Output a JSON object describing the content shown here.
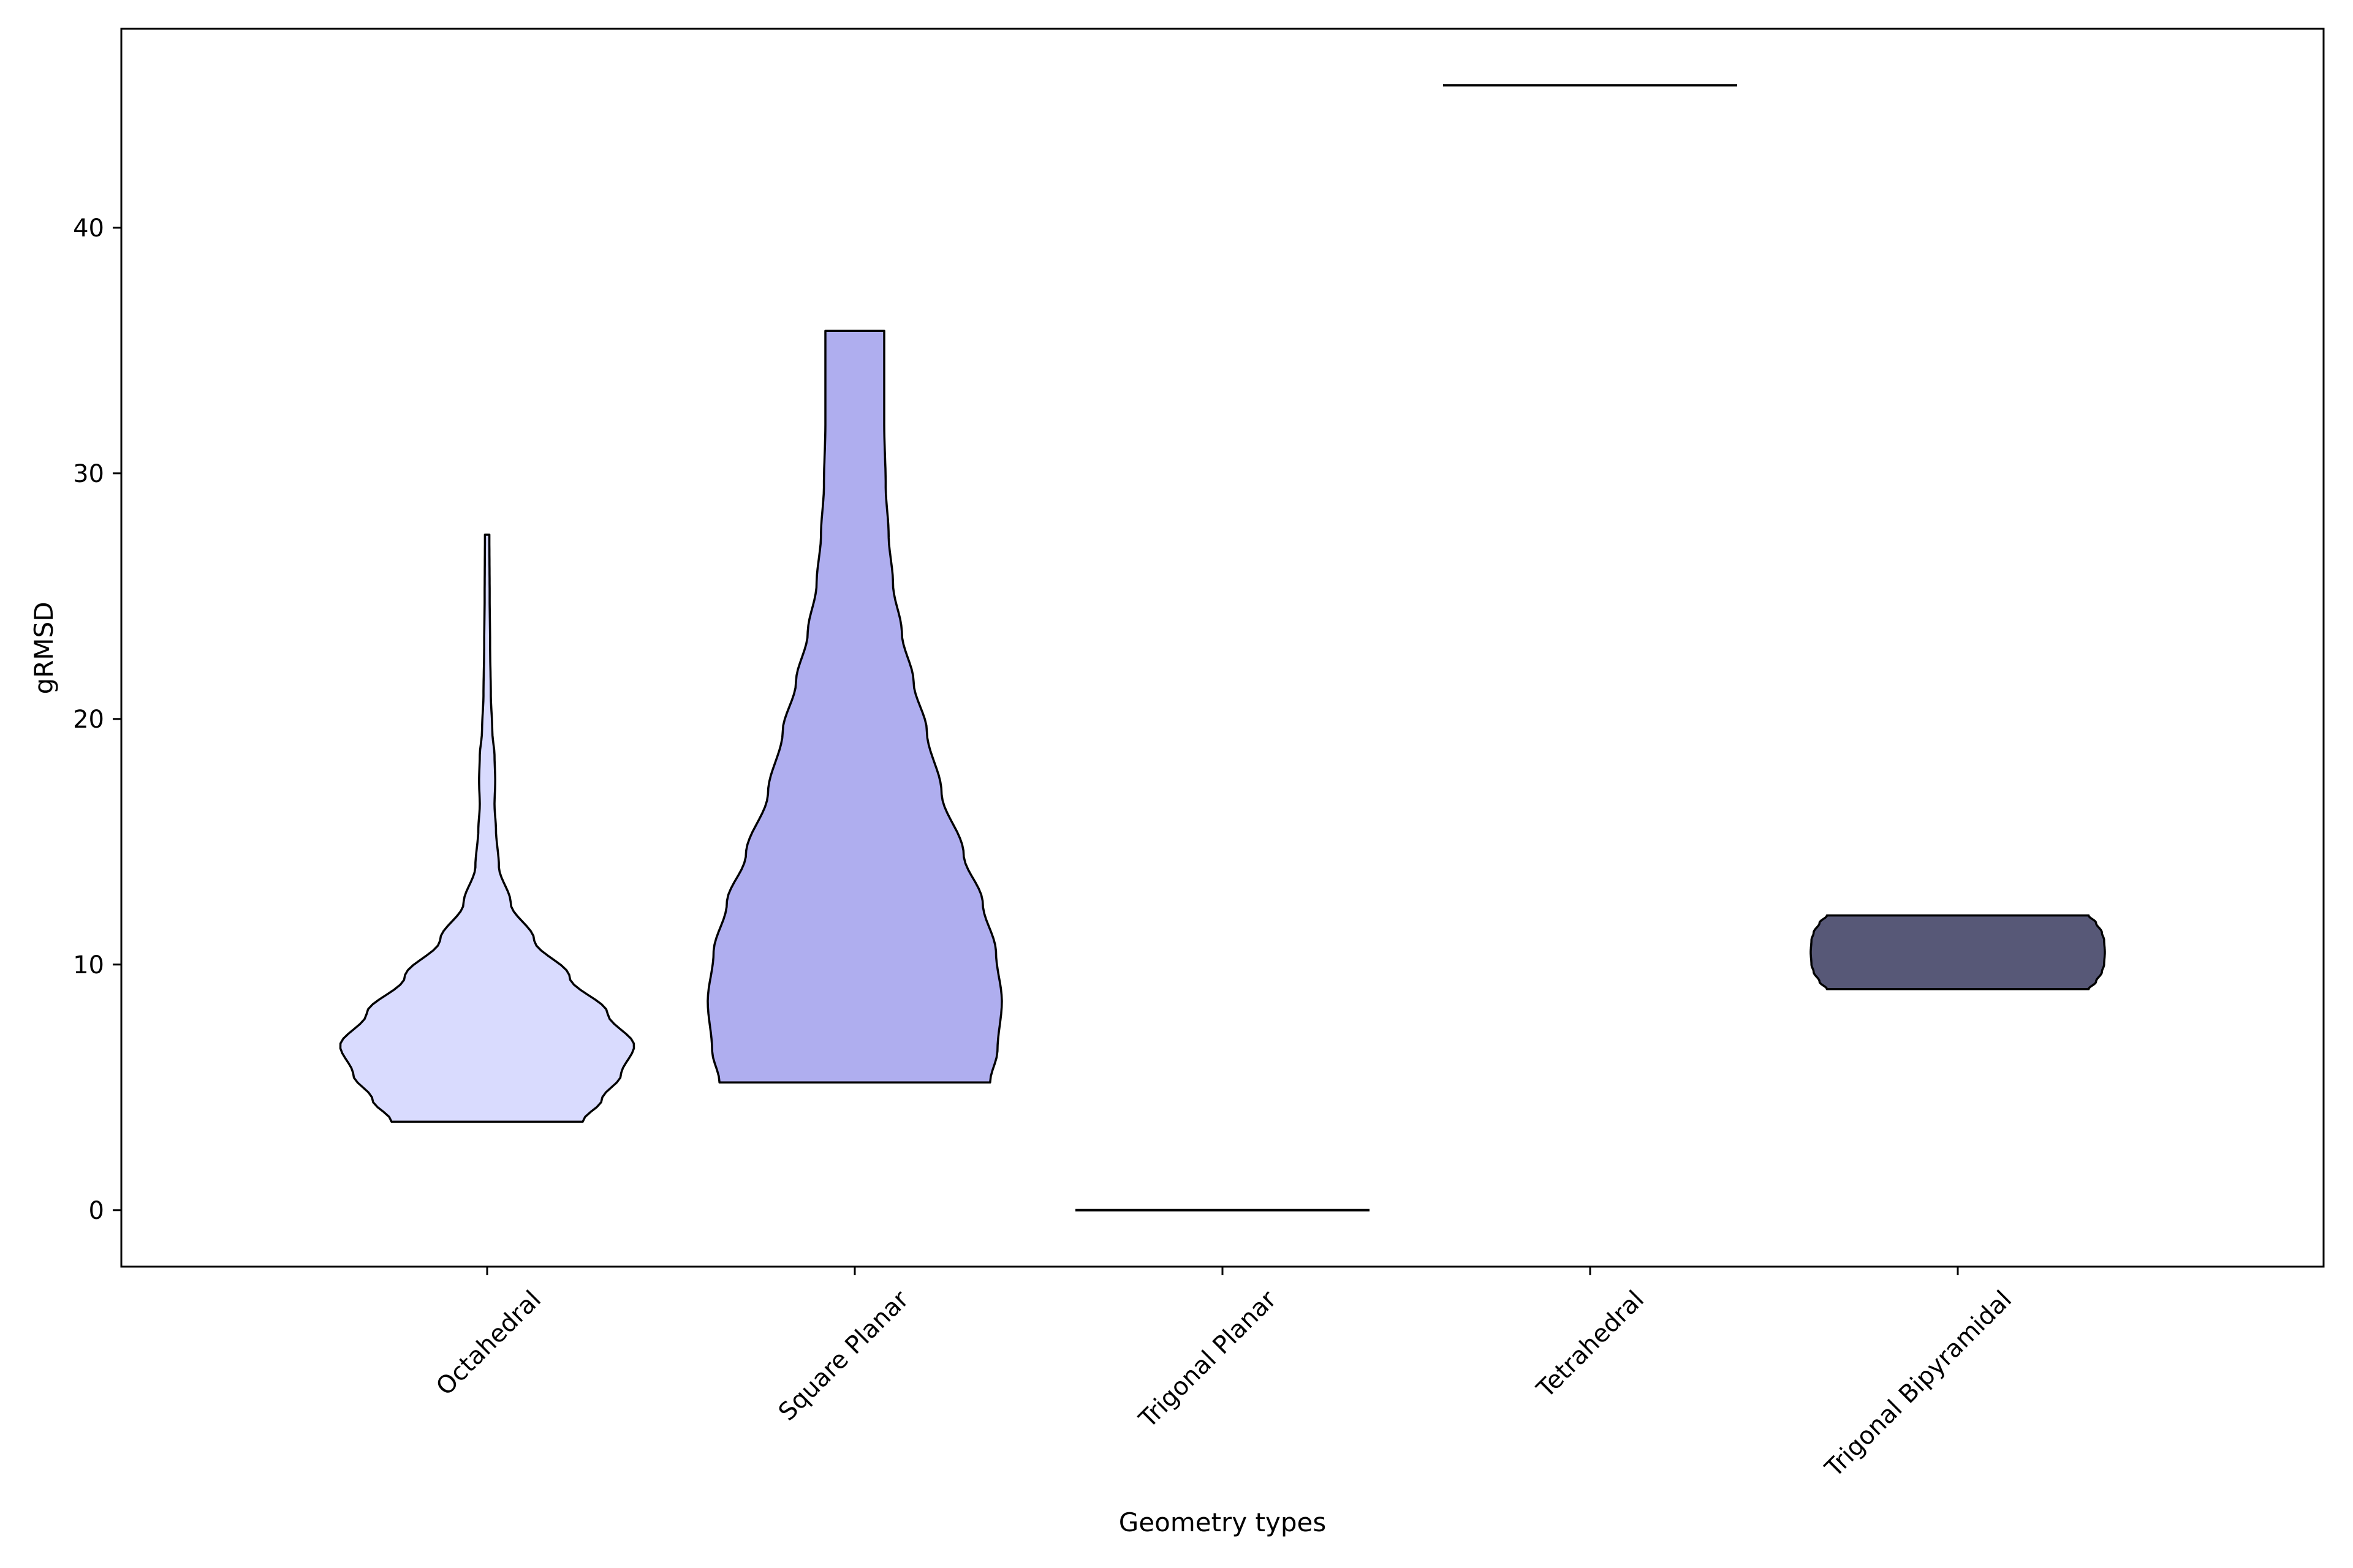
{
  "chart_data": {
    "type": "violin",
    "title": "",
    "xlabel": "Geometry types",
    "ylabel": "gRMSD",
    "ylim": [
      -2.3,
      48.1
    ],
    "yticks": [
      0,
      10,
      20,
      30,
      40
    ],
    "categories": [
      "Octahedral",
      "Square Planar",
      "Trigonal Planar",
      "Tetrahedral",
      "Trigonal Bipyramidal"
    ],
    "series": [
      {
        "name": "Octahedral",
        "color": "#d9dbfe",
        "min": 3.6,
        "max": 27.5,
        "profile": [
          [
            3.6,
            0.65
          ],
          [
            4.5,
            0.78
          ],
          [
            5.5,
            0.91
          ],
          [
            6.7,
            1.0
          ],
          [
            8.0,
            0.82
          ],
          [
            9.5,
            0.56
          ],
          [
            11.0,
            0.32
          ],
          [
            12.5,
            0.16
          ],
          [
            14.0,
            0.08
          ],
          [
            15.5,
            0.06
          ],
          [
            16.5,
            0.05
          ],
          [
            17.5,
            0.055
          ],
          [
            18.5,
            0.05
          ],
          [
            19.5,
            0.035
          ],
          [
            21.0,
            0.025
          ],
          [
            23.0,
            0.02
          ],
          [
            25.0,
            0.017
          ],
          [
            27.5,
            0.015
          ]
        ]
      },
      {
        "name": "Square Planar",
        "color": "#afaeef",
        "min": 5.2,
        "max": 35.8,
        "profile": [
          [
            5.2,
            0.92
          ],
          [
            6.5,
            0.97
          ],
          [
            8.5,
            1.0
          ],
          [
            10.5,
            0.96
          ],
          [
            12.5,
            0.87
          ],
          [
            14.5,
            0.74
          ],
          [
            17.0,
            0.59
          ],
          [
            19.5,
            0.49
          ],
          [
            21.5,
            0.4
          ],
          [
            23.5,
            0.32
          ],
          [
            25.5,
            0.26
          ],
          [
            27.5,
            0.23
          ],
          [
            29.5,
            0.21
          ],
          [
            32.0,
            0.2
          ],
          [
            35.8,
            0.2
          ]
        ]
      },
      {
        "name": "Trigonal Planar",
        "color": "#000000",
        "min": 0.0,
        "max": 0.0,
        "profile": []
      },
      {
        "name": "Tetrahedral",
        "color": "#000000",
        "min": 45.8,
        "max": 45.8,
        "profile": []
      },
      {
        "name": "Trigonal Bipyramidal",
        "color": "#575877",
        "min": 9.0,
        "max": 12.0,
        "profile": [
          [
            9.0,
            0.89
          ],
          [
            9.3,
            0.94
          ],
          [
            9.7,
            0.98
          ],
          [
            10.0,
            0.995
          ],
          [
            10.5,
            1.0
          ],
          [
            11.0,
            0.995
          ],
          [
            11.3,
            0.98
          ],
          [
            11.7,
            0.94
          ],
          [
            12.0,
            0.89
          ]
        ]
      }
    ]
  }
}
